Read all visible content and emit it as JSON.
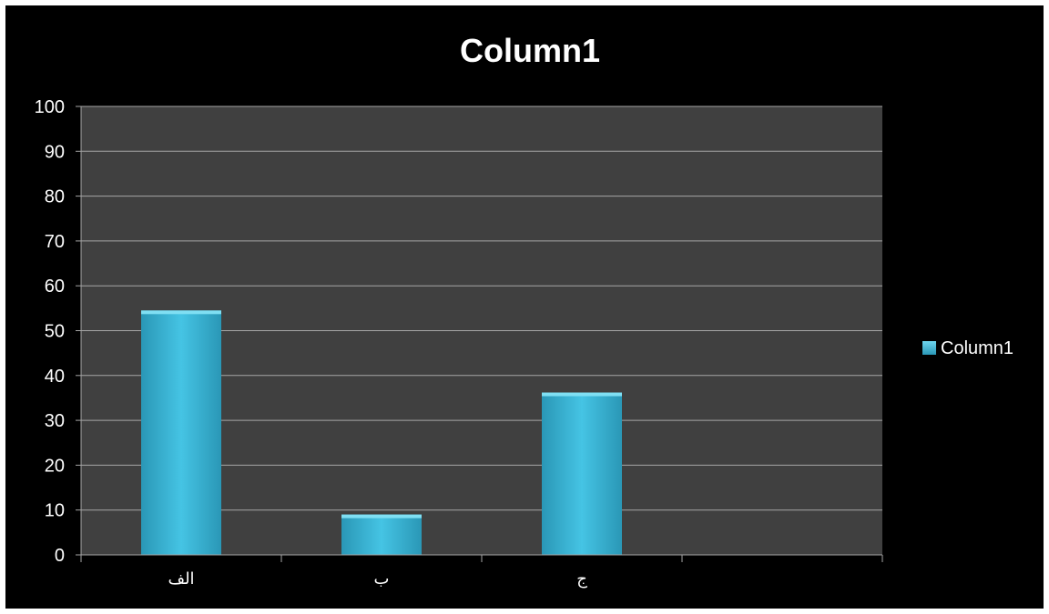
{
  "chart_data": {
    "type": "bar",
    "title": "Column1",
    "xlabel": "",
    "ylabel": "",
    "categories": [
      "الف",
      "ب",
      "ج",
      ""
    ],
    "series": [
      {
        "name": "Column1",
        "values": [
          54.5,
          9,
          36.2,
          null
        ],
        "color": "#3bbbdc"
      }
    ],
    "ylim": [
      0,
      100
    ],
    "yticks": [
      0,
      10,
      20,
      30,
      40,
      50,
      60,
      70,
      80,
      90,
      100
    ],
    "grid": true,
    "legend": "right",
    "colors": {
      "background": "#000000",
      "plot_area": "#404040",
      "gridline": "#a6a6a6",
      "text": "#ffffff",
      "bar": "#3bbbdc"
    }
  }
}
